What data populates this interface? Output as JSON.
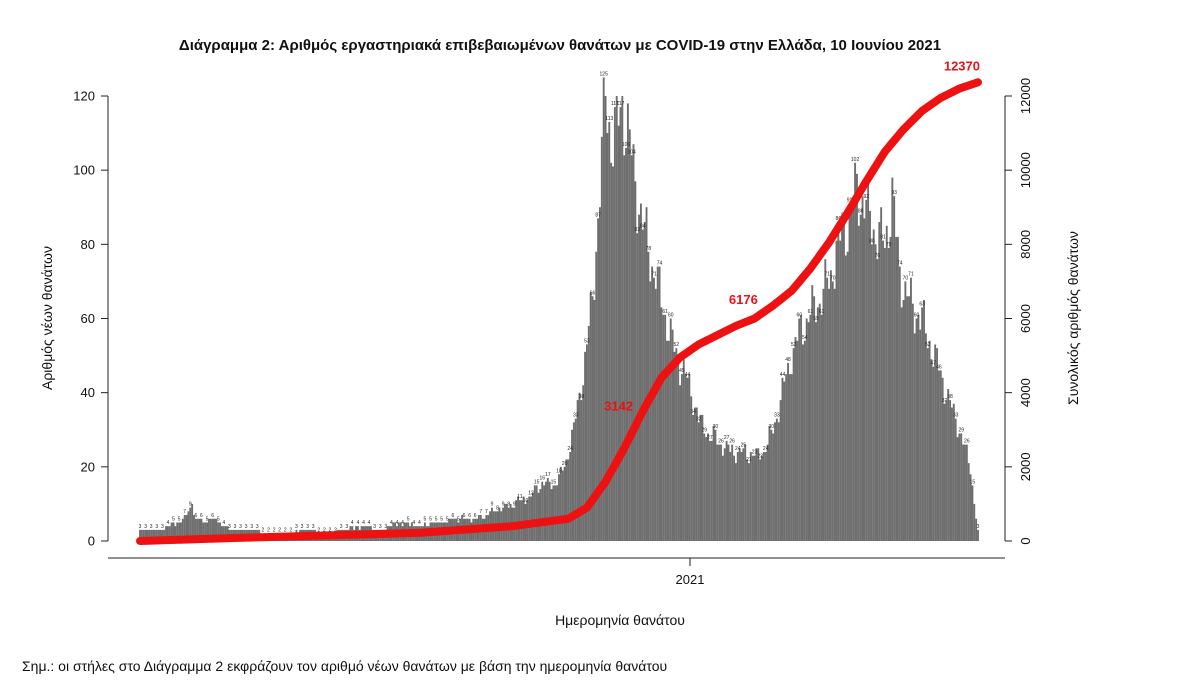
{
  "chart_data": {
    "type": "bar",
    "title": "Διάγραμμα 2: Αριθμός εργαστηριακά επιβεβαιωμένων θανάτων με COVID-19 στην Ελλάδα, 10 Ιουνίου 2021",
    "xlabel": "Ημερομηνία θανάτου",
    "ylabel": "Αριθμός νέων θανάτων",
    "y2label": "Συνολικός αριθμός θανάτων",
    "x_tick_labels": [
      "2021"
    ],
    "ylim": [
      0,
      120
    ],
    "y_ticks": [
      0,
      20,
      40,
      60,
      80,
      100,
      120
    ],
    "y2lim": [
      0,
      12000
    ],
    "y2_ticks": [
      0,
      2000,
      4000,
      6000,
      8000,
      10000,
      12000
    ],
    "legend": "none",
    "grid": false,
    "bar_color": "#6e6e6e",
    "line_color": "#ee1111",
    "series": [
      {
        "name": "",
        "kind": "bar",
        "axis": "left",
        "keypoints": [
          [
            0,
            3
          ],
          [
            10,
            3
          ],
          [
            15,
            4
          ],
          [
            20,
            5
          ],
          [
            25,
            7
          ],
          [
            28,
            10
          ],
          [
            30,
            6
          ],
          [
            35,
            5
          ],
          [
            40,
            6
          ],
          [
            45,
            4
          ],
          [
            50,
            3
          ],
          [
            60,
            3
          ],
          [
            70,
            2
          ],
          [
            80,
            2
          ],
          [
            90,
            3
          ],
          [
            100,
            2
          ],
          [
            110,
            3
          ],
          [
            120,
            4
          ],
          [
            130,
            3
          ],
          [
            140,
            5
          ],
          [
            150,
            4
          ],
          [
            160,
            5
          ],
          [
            170,
            6
          ],
          [
            180,
            6
          ],
          [
            190,
            8
          ],
          [
            200,
            10
          ],
          [
            210,
            12
          ],
          [
            216,
            16
          ],
          [
            222,
            15
          ],
          [
            228,
            20
          ],
          [
            233,
            30
          ],
          [
            238,
            45
          ],
          [
            243,
            65
          ],
          [
            247,
            95
          ],
          [
            250,
            121
          ],
          [
            253,
            108
          ],
          [
            256,
            110
          ],
          [
            259,
            119
          ],
          [
            262,
            110
          ],
          [
            265,
            100
          ],
          [
            270,
            85
          ],
          [
            275,
            75
          ],
          [
            280,
            65
          ],
          [
            285,
            55
          ],
          [
            290,
            48
          ],
          [
            295,
            42
          ],
          [
            300,
            33
          ],
          [
            305,
            29
          ],
          [
            310,
            27
          ],
          [
            315,
            25
          ],
          [
            320,
            24
          ],
          [
            325,
            24
          ],
          [
            330,
            23
          ],
          [
            335,
            24
          ],
          [
            340,
            30
          ],
          [
            345,
            40
          ],
          [
            350,
            50
          ],
          [
            355,
            57
          ],
          [
            360,
            61
          ],
          [
            365,
            65
          ],
          [
            370,
            70
          ],
          [
            375,
            80
          ],
          [
            380,
            86
          ],
          [
            385,
            95
          ],
          [
            390,
            90
          ],
          [
            395,
            83
          ],
          [
            400,
            80
          ],
          [
            404,
            93
          ],
          [
            408,
            72
          ],
          [
            412,
            66
          ],
          [
            416,
            62
          ],
          [
            420,
            60
          ],
          [
            425,
            52
          ],
          [
            430,
            45
          ],
          [
            435,
            37
          ],
          [
            440,
            30
          ],
          [
            443,
            25
          ],
          [
            446,
            20
          ],
          [
            448,
            10
          ],
          [
            450,
            3
          ]
        ]
      },
      {
        "name": "",
        "kind": "line",
        "axis": "right",
        "keypoints": [
          [
            0,
            0
          ],
          [
            50,
            80
          ],
          [
            100,
            150
          ],
          [
            150,
            220
          ],
          [
            200,
            400
          ],
          [
            230,
            600
          ],
          [
            240,
            900
          ],
          [
            250,
            1600
          ],
          [
            260,
            2500
          ],
          [
            270,
            3500
          ],
          [
            280,
            4400
          ],
          [
            290,
            4950
          ],
          [
            300,
            5300
          ],
          [
            310,
            5550
          ],
          [
            320,
            5800
          ],
          [
            330,
            6000
          ],
          [
            335,
            6176
          ],
          [
            340,
            6350
          ],
          [
            350,
            6750
          ],
          [
            360,
            7350
          ],
          [
            370,
            8050
          ],
          [
            380,
            8850
          ],
          [
            390,
            9700
          ],
          [
            400,
            10500
          ],
          [
            410,
            11100
          ],
          [
            420,
            11600
          ],
          [
            430,
            11950
          ],
          [
            440,
            12200
          ],
          [
            450,
            12370
          ]
        ]
      }
    ],
    "annotations": [
      {
        "text": "3142",
        "series_index": 1,
        "x": 268
      },
      {
        "text": "6176",
        "series_index": 1,
        "x": 335
      },
      {
        "text": "12370",
        "series_index": 1,
        "x": 450
      }
    ]
  },
  "note": "Σημ.: οι στήλες στο Διάγραμμα 2 εκφράζουν τον αριθμό νέων θανάτων με βάση την ημερομηνία θανάτου"
}
